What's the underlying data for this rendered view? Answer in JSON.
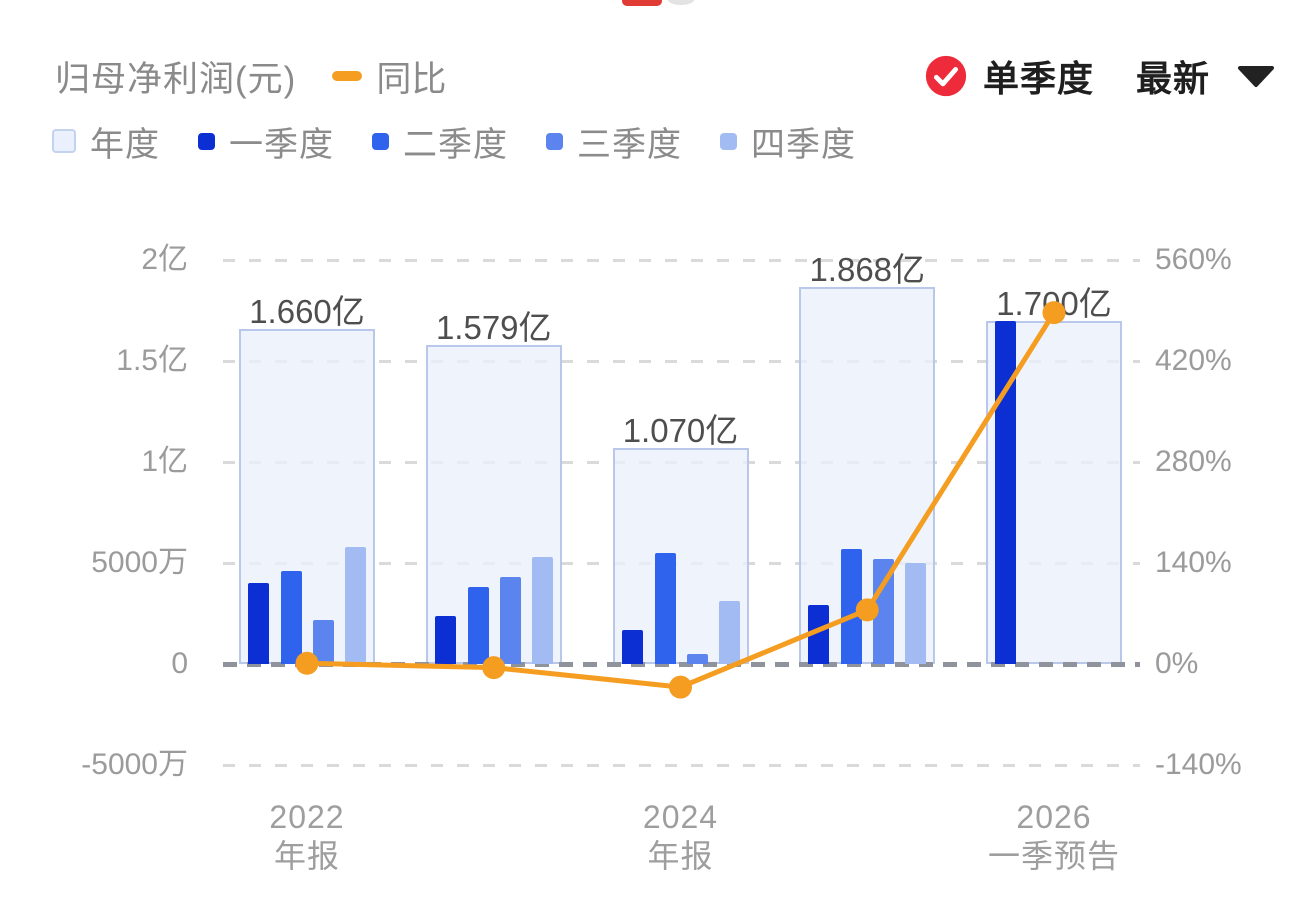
{
  "header": {
    "title": "归母净利润(元)",
    "line_legend": {
      "label": "同比",
      "color": "#F49D20"
    },
    "controls": {
      "check_icon": "check-circle-icon",
      "check_color": "#EE2B3A",
      "quarter_mode_label": "单季度",
      "latest_label": "最新",
      "caret_icon": "caret-down-icon"
    }
  },
  "legend": {
    "items": [
      {
        "label": "年度",
        "type": "annual",
        "fill": "#EAF0FC",
        "border": "#C3D2EE"
      },
      {
        "label": "一季度",
        "type": "quarter",
        "fill": "#0B2FD2"
      },
      {
        "label": "二季度",
        "type": "quarter",
        "fill": "#2F62ED"
      },
      {
        "label": "三季度",
        "type": "quarter",
        "fill": "#5B84EE"
      },
      {
        "label": "四季度",
        "type": "quarter",
        "fill": "#A2BCF3"
      }
    ]
  },
  "chart_data": {
    "type": "bar",
    "subtype": "grouped bars (annual background + 4 quarters) with yoy line on secondary axis",
    "title": "归母净利润(元)",
    "legend_entries": [
      "年度",
      "一季度",
      "二季度",
      "三季度",
      "四季度",
      "同比"
    ],
    "left_axis": {
      "tick_labels": [
        "2亿",
        "1.5亿",
        "1亿",
        "5000万",
        "0",
        "-5000万"
      ],
      "tick_values_yi": [
        2,
        1.5,
        1,
        0.5,
        0,
        -0.5
      ],
      "range_yi": [
        -0.5,
        2
      ]
    },
    "right_axis": {
      "tick_labels": [
        "560%",
        "420%",
        "280%",
        "140%",
        "0%",
        "-140%"
      ],
      "tick_values_pct": [
        560,
        420,
        280,
        140,
        0,
        -140
      ],
      "range_pct": [
        -140,
        560
      ]
    },
    "grid": "dashed horizontal gridlines, zero line emphasized",
    "groups": [
      {
        "x_year": "2022",
        "x_period": "年报",
        "annual_label": "1.660亿",
        "annual_yi": 1.66,
        "quarters_yi": [
          0.4,
          0.46,
          0.22,
          0.58
        ],
        "yoy_pct": 1
      },
      {
        "x_year": null,
        "x_period": null,
        "annual_label": "1.579亿",
        "annual_yi": 1.579,
        "quarters_yi": [
          0.24,
          0.38,
          0.43,
          0.53
        ],
        "yoy_pct": -5
      },
      {
        "x_year": "2024",
        "x_period": "年报",
        "annual_label": "1.070亿",
        "annual_yi": 1.07,
        "quarters_yi": [
          0.17,
          0.55,
          0.05,
          0.31
        ],
        "yoy_pct": -32
      },
      {
        "x_year": null,
        "x_period": null,
        "annual_label": "1.868亿",
        "annual_yi": 1.868,
        "quarters_yi": [
          0.29,
          0.57,
          0.52,
          0.5
        ],
        "yoy_pct": 75
      },
      {
        "x_year": "2026",
        "x_period": "一季预告",
        "annual_label": "1.700亿",
        "annual_yi": 1.7,
        "quarters_yi": [
          1.7,
          null,
          null,
          null
        ],
        "yoy_pct": 487
      }
    ],
    "line_series": {
      "name": "同比",
      "values_pct": [
        1,
        -5,
        -32,
        75,
        487
      ],
      "color": "#F49D20"
    },
    "colors": {
      "annual_fill": "#E9EFFB",
      "annual_border": "#B9C7EA",
      "q1": "#0B2FD2",
      "q2": "#2F62ED",
      "q3": "#5B84EE",
      "q4": "#A2BCF3",
      "line": "#F49D20",
      "grid": "#DADADA",
      "zero_line": "#8F949C",
      "axis_text": "#9B9B9B",
      "bar_label_text": "#4E4E4E"
    }
  }
}
